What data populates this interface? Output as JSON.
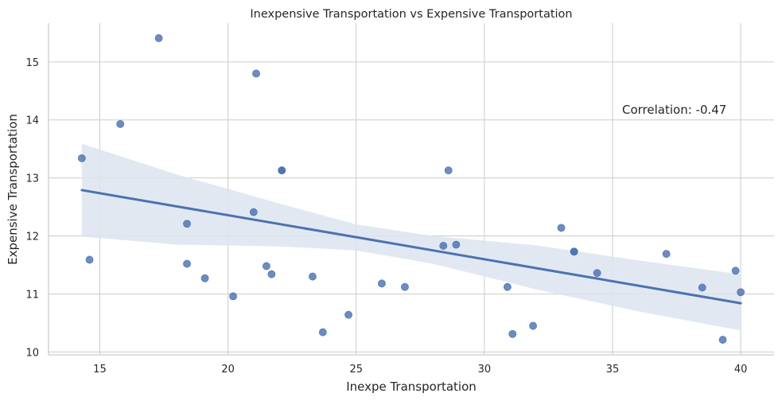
{
  "chart_data": {
    "type": "scatter",
    "title": "Inexpensive Transportation vs Expensive Transportation",
    "xlabel": "Inexpe Transportation",
    "ylabel": "Expensive Transportation",
    "xlim": [
      13.0,
      41.3
    ],
    "ylim": [
      9.95,
      15.67
    ],
    "xticks": [
      15,
      20,
      25,
      30,
      35,
      40
    ],
    "yticks": [
      10,
      11,
      12,
      13,
      14,
      15
    ],
    "grid": true,
    "annotation": "Correlation: -0.47",
    "colors": {
      "points": "#4c72b0",
      "line": "#4c72b0",
      "band": "#dde4f0"
    },
    "points": [
      {
        "x": 14.3,
        "y": 13.34
      },
      {
        "x": 14.6,
        "y": 11.59
      },
      {
        "x": 15.8,
        "y": 13.93
      },
      {
        "x": 17.3,
        "y": 15.41
      },
      {
        "x": 18.4,
        "y": 12.21
      },
      {
        "x": 18.4,
        "y": 11.52
      },
      {
        "x": 19.1,
        "y": 11.27
      },
      {
        "x": 20.2,
        "y": 10.96
      },
      {
        "x": 21.0,
        "y": 12.41
      },
      {
        "x": 21.1,
        "y": 14.8
      },
      {
        "x": 21.5,
        "y": 11.48
      },
      {
        "x": 21.7,
        "y": 11.34
      },
      {
        "x": 22.1,
        "y": 13.13
      },
      {
        "x": 22.1,
        "y": 13.13
      },
      {
        "x": 23.3,
        "y": 11.3
      },
      {
        "x": 23.7,
        "y": 10.34
      },
      {
        "x": 24.7,
        "y": 10.64
      },
      {
        "x": 26.0,
        "y": 11.18
      },
      {
        "x": 26.9,
        "y": 11.12
      },
      {
        "x": 28.4,
        "y": 11.83
      },
      {
        "x": 28.6,
        "y": 13.13
      },
      {
        "x": 28.9,
        "y": 11.85
      },
      {
        "x": 30.9,
        "y": 11.12
      },
      {
        "x": 31.1,
        "y": 10.31
      },
      {
        "x": 31.9,
        "y": 10.45
      },
      {
        "x": 33.0,
        "y": 12.14
      },
      {
        "x": 33.5,
        "y": 11.73
      },
      {
        "x": 33.5,
        "y": 11.73
      },
      {
        "x": 34.4,
        "y": 11.36
      },
      {
        "x": 37.1,
        "y": 11.69
      },
      {
        "x": 38.5,
        "y": 11.11
      },
      {
        "x": 39.3,
        "y": 10.21
      },
      {
        "x": 39.8,
        "y": 11.4
      },
      {
        "x": 40.0,
        "y": 11.03
      }
    ],
    "regression": {
      "x_range": [
        14.3,
        40.0
      ],
      "y_range": [
        12.79,
        10.84
      ],
      "ci_band": [
        {
          "x": 14.3,
          "lo": 11.99,
          "hi": 13.59
        },
        {
          "x": 18.0,
          "lo": 11.85,
          "hi": 13.06
        },
        {
          "x": 22.0,
          "lo": 11.82,
          "hi": 12.56
        },
        {
          "x": 25.0,
          "lo": 11.75,
          "hi": 12.2
        },
        {
          "x": 28.0,
          "lo": 11.52,
          "hi": 12.0
        },
        {
          "x": 32.0,
          "lo": 11.08,
          "hi": 11.84
        },
        {
          "x": 36.0,
          "lo": 10.7,
          "hi": 11.58
        },
        {
          "x": 40.0,
          "lo": 10.37,
          "hi": 11.34
        }
      ]
    }
  }
}
